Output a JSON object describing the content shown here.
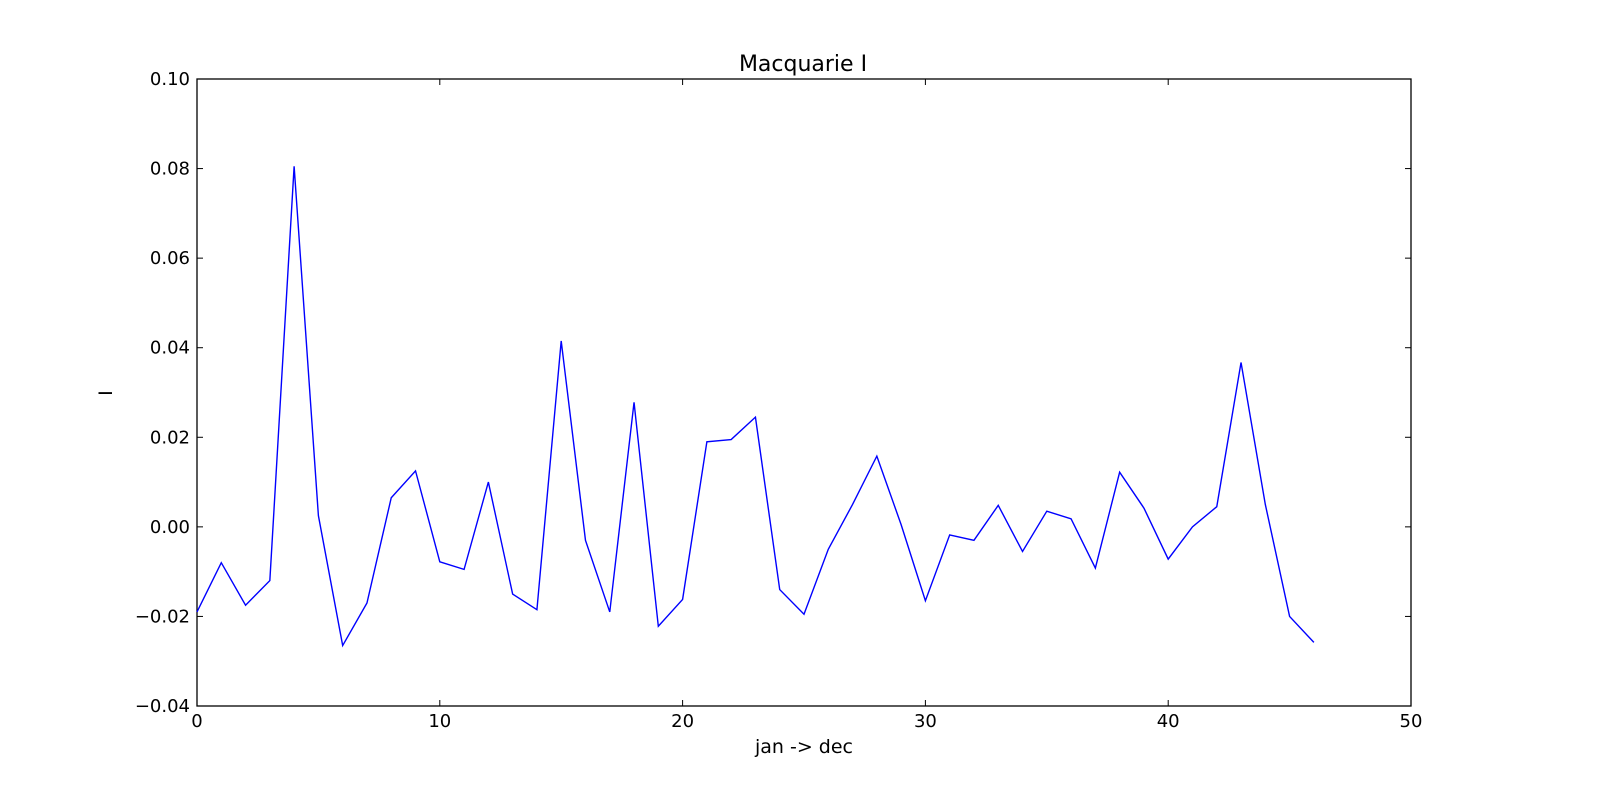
{
  "chart_data": {
    "type": "line",
    "title": "Macquarie I",
    "xlabel": "jan -> dec",
    "ylabel": "I",
    "xlim": [
      0,
      50
    ],
    "ylim": [
      -0.04,
      0.1
    ],
    "x_ticks": [
      0,
      10,
      20,
      30,
      40,
      50
    ],
    "y_ticks": [
      -0.04,
      -0.02,
      0.0,
      0.02,
      0.04,
      0.06,
      0.08,
      0.1
    ],
    "x_tick_labels": [
      "0",
      "10",
      "20",
      "30",
      "40",
      "50"
    ],
    "y_tick_labels": [
      "−0.04",
      "−0.02",
      "0.00",
      "0.02",
      "0.04",
      "0.06",
      "0.08",
      "0.10"
    ],
    "grid": false,
    "line_color": "#0000ff",
    "series": [
      {
        "x": [
          0,
          1,
          2,
          3,
          4,
          5,
          6,
          7,
          8,
          9,
          10,
          11,
          12,
          13,
          14,
          15,
          16,
          17,
          18,
          19,
          20,
          21,
          22,
          23,
          24,
          25,
          26,
          27,
          28,
          29,
          30,
          31,
          32,
          33,
          34,
          35,
          36,
          37,
          38,
          39,
          40,
          41,
          42,
          43,
          44,
          45,
          46
        ],
        "values": [
          -0.019,
          -0.008,
          -0.0175,
          -0.012,
          0.0805,
          0.0025,
          -0.0265,
          -0.017,
          0.0065,
          0.0125,
          -0.0078,
          -0.0095,
          0.01,
          -0.015,
          -0.0185,
          0.0415,
          -0.003,
          -0.019,
          0.0278,
          -0.0222,
          -0.0162,
          0.019,
          0.0195,
          0.0245,
          -0.014,
          -0.0195,
          -0.005,
          0.005,
          0.0158,
          0.0005,
          -0.0165,
          -0.0018,
          -0.003,
          0.0048,
          -0.0055,
          0.0035,
          0.0018,
          -0.0092,
          0.0122,
          0.0042,
          -0.0072,
          0.0,
          0.0045,
          0.0367,
          0.005,
          -0.02,
          -0.0258
        ]
      }
    ]
  }
}
